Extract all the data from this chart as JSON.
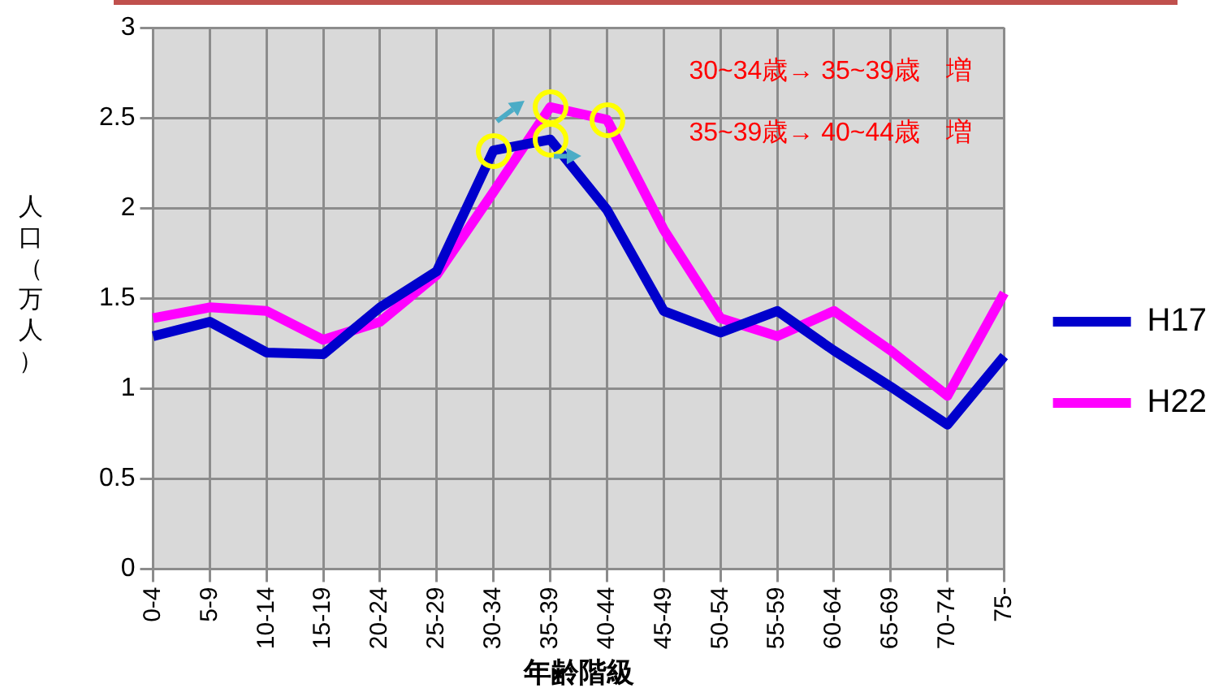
{
  "chart_data": {
    "type": "line",
    "xlabel": "年齢階級",
    "ylabel": "人口（万人）",
    "categories": [
      "0-4",
      "5-9",
      "10-14",
      "15-19",
      "20-24",
      "25-29",
      "30-34",
      "35-39",
      "40-44",
      "45-49",
      "50-54",
      "55-59",
      "60-64",
      "65-69",
      "70-74",
      "75-"
    ],
    "series": [
      {
        "name": "H17",
        "color": "#0000cc",
        "values": [
          1.29,
          1.37,
          1.2,
          1.19,
          1.45,
          1.65,
          2.32,
          2.38,
          1.99,
          1.43,
          1.31,
          1.43,
          1.21,
          1.01,
          0.8,
          1.18
        ]
      },
      {
        "name": "H22",
        "color": "#ff00ff",
        "values": [
          1.39,
          1.45,
          1.43,
          1.27,
          1.37,
          1.63,
          2.09,
          2.56,
          2.49,
          1.88,
          1.39,
          1.29,
          1.43,
          1.21,
          0.96,
          1.53
        ]
      }
    ],
    "ylim": [
      0,
      3
    ],
    "yticks": [
      0,
      0.5,
      1,
      1.5,
      2,
      2.5,
      3
    ],
    "grid": true,
    "legend": "right",
    "marker": "none",
    "line_style": "solid",
    "annotations": [
      "30~34歳→ 35~39歳　増",
      "35~39歳→ 40~44歳　増"
    ]
  }
}
